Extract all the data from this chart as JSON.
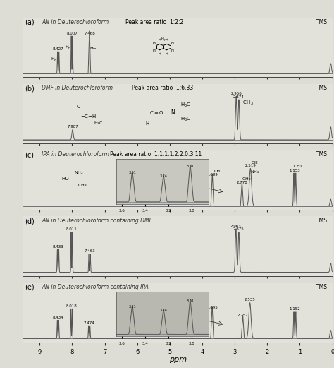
{
  "panels": [
    "(a)",
    "(b)",
    "(c)",
    "(d)",
    "(e)"
  ],
  "labels": [
    "AN in Deuterochloroform",
    "DMF in Deuterochloroform",
    "IPA in Deuterochloroform",
    "AN in Deuterochloroform containing DMF",
    "AN in Deuterochloroform containing IPA"
  ],
  "peak_ratio_labels": [
    "Peak area ratio  1:2:2",
    "Peak area ratio  1:6.33",
    "Peak area ratio  1:1.1:1.2:2.0:3.11",
    "",
    ""
  ],
  "tms_label": "TMS",
  "xmin": 0.0,
  "xmax": 9.5,
  "xlabel": "ppm",
  "bg_color": "#e8e8e0",
  "line_color": "#888888",
  "spectrum_color": "#555555"
}
